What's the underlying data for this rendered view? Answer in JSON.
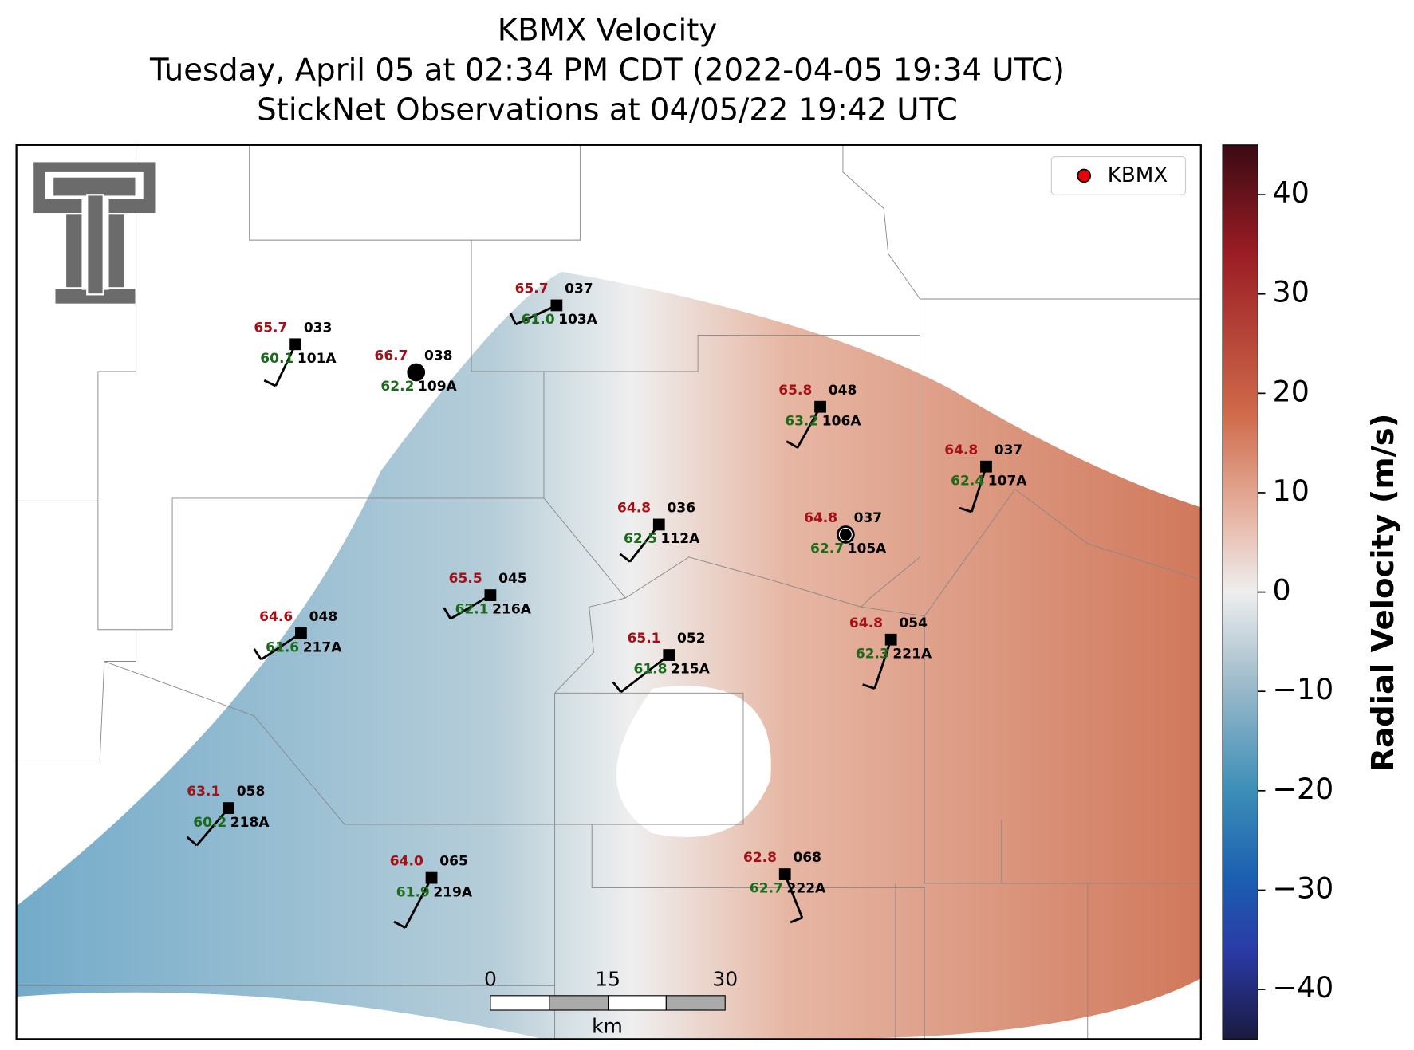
{
  "title": [
    "KBMX Velocity",
    "Tuesday, April 05 at 02:34 PM CDT (2022-04-05 19:34 UTC)",
    "StickNet Observations at 04/05/22 19:42 UTC"
  ],
  "legend": {
    "label": "KBMX",
    "color": "#e8000b"
  },
  "stations": [
    {
      "id": "101A",
      "temp": "65.7",
      "dewpoint": "60.1",
      "code": "033"
    },
    {
      "id": "109A",
      "temp": "66.7",
      "dewpoint": "62.2",
      "code": "038"
    },
    {
      "id": "103A",
      "temp": "65.7",
      "dewpoint": "61.0",
      "code": "037"
    },
    {
      "id": "106A",
      "temp": "65.8",
      "dewpoint": "63.2",
      "code": "048"
    },
    {
      "id": "107A",
      "temp": "64.8",
      "dewpoint": "62.4",
      "code": "037"
    },
    {
      "id": "112A",
      "temp": "64.8",
      "dewpoint": "62.5",
      "code": "036"
    },
    {
      "id": "105A",
      "temp": "64.8",
      "dewpoint": "62.7",
      "code": "037"
    },
    {
      "id": "216A",
      "temp": "65.5",
      "dewpoint": "62.1",
      "code": "045"
    },
    {
      "id": "217A",
      "temp": "64.6",
      "dewpoint": "61.6",
      "code": "048"
    },
    {
      "id": "215A",
      "temp": "65.1",
      "dewpoint": "61.8",
      "code": "052"
    },
    {
      "id": "221A",
      "temp": "64.8",
      "dewpoint": "62.3",
      "code": "054"
    },
    {
      "id": "218A",
      "temp": "63.1",
      "dewpoint": "60.2",
      "code": "058"
    },
    {
      "id": "219A",
      "temp": "64.0",
      "dewpoint": "61.9",
      "code": "065"
    },
    {
      "id": "222A",
      "temp": "62.8",
      "dewpoint": "62.7",
      "code": "068"
    }
  ],
  "colorbar": {
    "label": "Radial Velocity (m/s)",
    "lim": [
      -45,
      45
    ],
    "ticks": [
      {
        "value": -40,
        "label": "−40"
      },
      {
        "value": -30,
        "label": "−30"
      },
      {
        "value": -20,
        "label": "−20"
      },
      {
        "value": -10,
        "label": "−10"
      },
      0,
      10,
      20,
      30,
      40
    ]
  },
  "scale_bar": {
    "ticks": [
      0,
      15,
      30
    ],
    "unit": "km"
  }
}
